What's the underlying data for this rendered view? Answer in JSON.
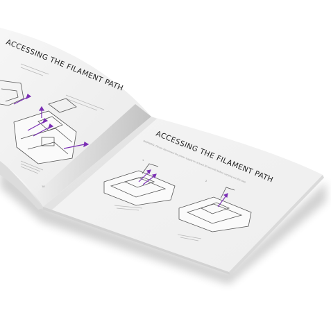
{
  "booklet": {
    "left_page": {
      "title": "ACCESSING THE FILAMENT PATH",
      "page_number": "18"
    },
    "right_page": {
      "title": "ACCESSING THE FILAMENT PATH",
      "warning": "WARNING: Please disconnect the power supply for at least 30 seconds before carrying out this step.",
      "step_labels": [
        "1",
        "2"
      ]
    }
  },
  "colors": {
    "accent_arrows": "#7b2fb5",
    "page": "#f2f2f2",
    "background": "#ffffff"
  }
}
